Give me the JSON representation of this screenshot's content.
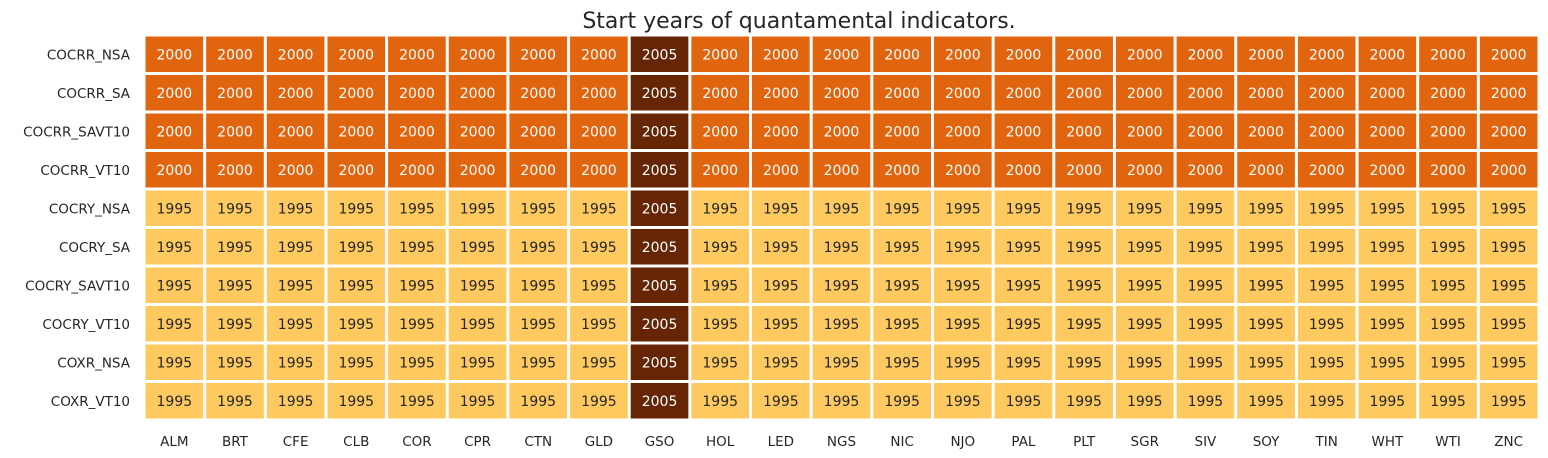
{
  "chart_data": {
    "type": "heatmap",
    "title": "Start years of quantamental indicators.",
    "xlabel": "",
    "ylabel": "",
    "rows": [
      "COCRR_NSA",
      "COCRR_SA",
      "COCRR_SAVT10",
      "COCRR_VT10",
      "COCRY_NSA",
      "COCRY_SA",
      "COCRY_SAVT10",
      "COCRY_VT10",
      "COXR_NSA",
      "COXR_VT10"
    ],
    "columns": [
      "ALM",
      "BRT",
      "CFE",
      "CLB",
      "COR",
      "CPR",
      "CTN",
      "GLD",
      "GSO",
      "HOL",
      "LED",
      "NGS",
      "NIC",
      "NJO",
      "PAL",
      "PLT",
      "SGR",
      "SIV",
      "SOY",
      "TIN",
      "WHT",
      "WTI",
      "ZNC"
    ],
    "values": [
      [
        2000,
        2000,
        2000,
        2000,
        2000,
        2000,
        2000,
        2000,
        2005,
        2000,
        2000,
        2000,
        2000,
        2000,
        2000,
        2000,
        2000,
        2000,
        2000,
        2000,
        2000,
        2000,
        2000
      ],
      [
        2000,
        2000,
        2000,
        2000,
        2000,
        2000,
        2000,
        2000,
        2005,
        2000,
        2000,
        2000,
        2000,
        2000,
        2000,
        2000,
        2000,
        2000,
        2000,
        2000,
        2000,
        2000,
        2000
      ],
      [
        2000,
        2000,
        2000,
        2000,
        2000,
        2000,
        2000,
        2000,
        2005,
        2000,
        2000,
        2000,
        2000,
        2000,
        2000,
        2000,
        2000,
        2000,
        2000,
        2000,
        2000,
        2000,
        2000
      ],
      [
        2000,
        2000,
        2000,
        2000,
        2000,
        2000,
        2000,
        2000,
        2005,
        2000,
        2000,
        2000,
        2000,
        2000,
        2000,
        2000,
        2000,
        2000,
        2000,
        2000,
        2000,
        2000,
        2000
      ],
      [
        1995,
        1995,
        1995,
        1995,
        1995,
        1995,
        1995,
        1995,
        2005,
        1995,
        1995,
        1995,
        1995,
        1995,
        1995,
        1995,
        1995,
        1995,
        1995,
        1995,
        1995,
        1995,
        1995
      ],
      [
        1995,
        1995,
        1995,
        1995,
        1995,
        1995,
        1995,
        1995,
        2005,
        1995,
        1995,
        1995,
        1995,
        1995,
        1995,
        1995,
        1995,
        1995,
        1995,
        1995,
        1995,
        1995,
        1995
      ],
      [
        1995,
        1995,
        1995,
        1995,
        1995,
        1995,
        1995,
        1995,
        2005,
        1995,
        1995,
        1995,
        1995,
        1995,
        1995,
        1995,
        1995,
        1995,
        1995,
        1995,
        1995,
        1995,
        1995
      ],
      [
        1995,
        1995,
        1995,
        1995,
        1995,
        1995,
        1995,
        1995,
        2005,
        1995,
        1995,
        1995,
        1995,
        1995,
        1995,
        1995,
        1995,
        1995,
        1995,
        1995,
        1995,
        1995,
        1995
      ],
      [
        1995,
        1995,
        1995,
        1995,
        1995,
        1995,
        1995,
        1995,
        2005,
        1995,
        1995,
        1995,
        1995,
        1995,
        1995,
        1995,
        1995,
        1995,
        1995,
        1995,
        1995,
        1995,
        1995
      ],
      [
        1995,
        1995,
        1995,
        1995,
        1995,
        1995,
        1995,
        1995,
        2005,
        1995,
        1995,
        1995,
        1995,
        1995,
        1995,
        1995,
        1995,
        1995,
        1995,
        1995,
        1995,
        1995,
        1995
      ]
    ],
    "color_scale": {
      "1995": "#fec95f",
      "2000": "#e1640e",
      "2005": "#662505"
    },
    "text_colors": {
      "1995": "#262626",
      "2000": "#ffffff",
      "2005": "#ffffff"
    },
    "colorbar": false,
    "grid": false
  }
}
